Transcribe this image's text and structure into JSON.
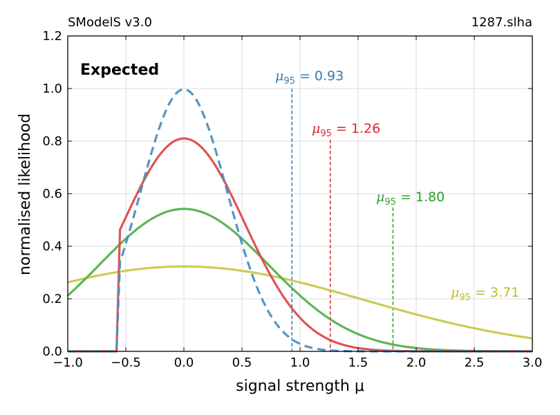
{
  "header": {
    "left": "SModelS v3.0",
    "right": "1287.slha"
  },
  "chart_data": {
    "type": "line",
    "title_left": "SModelS v3.0",
    "title_right": "1287.slha",
    "annotation": "Expected",
    "xlabel": "signal strength μ",
    "ylabel": "normalised likelihood",
    "xlim": [
      -1.0,
      3.0
    ],
    "ylim": [
      0.0,
      1.2
    ],
    "x_ticks": [
      -1.0,
      -0.5,
      0.0,
      0.5,
      1.0,
      1.5,
      2.0,
      2.5,
      3.0
    ],
    "x_tick_labels": [
      "−1.0",
      "−0.5",
      "0.0",
      "0.5",
      "1.0",
      "1.5",
      "2.0",
      "2.5",
      "3.0"
    ],
    "y_ticks": [
      0.0,
      0.2,
      0.4,
      0.6,
      0.8,
      1.0,
      1.2
    ],
    "y_tick_labels": [
      "0.0",
      "0.2",
      "0.4",
      "0.6",
      "0.8",
      "1.0",
      "1.2"
    ],
    "grid": true,
    "cutoff_mu": -0.58,
    "series": [
      {
        "name": "curve-blue",
        "color": "#4a8fc2",
        "style": "dashed",
        "peak_mu": 0.0,
        "peak": 0.997,
        "sigma": 0.375,
        "mu95": 0.93,
        "mu95_label": "0.93"
      },
      {
        "name": "curve-red",
        "color": "#dc4b4b",
        "style": "solid",
        "peak_mu": 0.0,
        "peak": 0.81,
        "sigma": 0.52,
        "mu95": 1.26,
        "mu95_label": "1.26"
      },
      {
        "name": "curve-green",
        "color": "#55b04e",
        "style": "solid",
        "peak_mu": 0.0,
        "peak": 0.542,
        "sigma": 0.73,
        "mu95": 1.8,
        "mu95_label": "1.80"
      },
      {
        "name": "curve-olive",
        "color": "#c8c84b",
        "style": "solid",
        "peak_mu": 0.0,
        "peak": 0.323,
        "sigma": 1.55,
        "mu95": 3.71,
        "mu95_label": "3.71"
      }
    ],
    "mu95_label_text": "μ",
    "mu95_sub": "95",
    "mu95_eq": " = ",
    "label_colors": [
      "#2f7ab5",
      "#d62728",
      "#2ca02c",
      "#bcbd22"
    ]
  }
}
